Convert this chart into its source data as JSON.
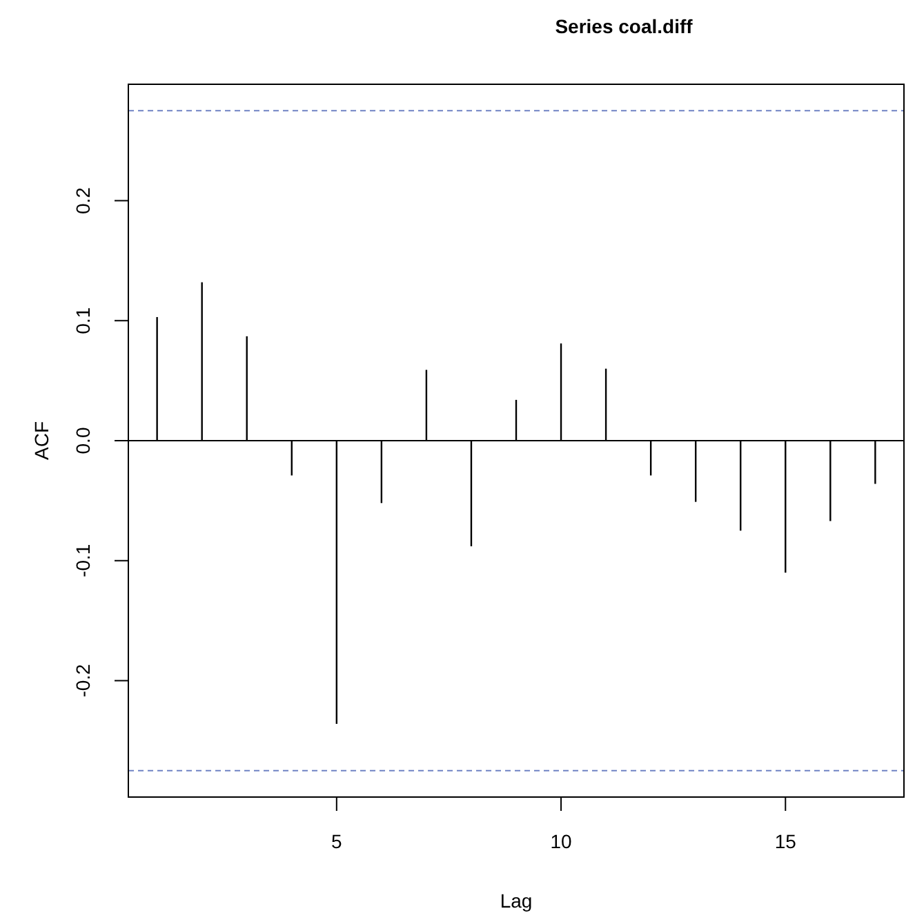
{
  "chart_data": {
    "type": "bar",
    "title": "Series coal.diff",
    "xlabel": "Lag",
    "ylabel": "ACF",
    "x": [
      1,
      2,
      3,
      4,
      5,
      6,
      7,
      8,
      9,
      10,
      11,
      12,
      13,
      14,
      15,
      16,
      17
    ],
    "values": [
      0.103,
      0.132,
      0.087,
      -0.029,
      -0.236,
      -0.052,
      0.059,
      -0.088,
      0.034,
      0.081,
      0.06,
      -0.029,
      -0.051,
      -0.075,
      -0.11,
      -0.067,
      -0.036
    ],
    "color": "#000000",
    "xlim": [
      0.36,
      17.64
    ],
    "xticks": [
      5,
      10,
      15
    ],
    "ylim": [
      -0.297,
      0.297
    ],
    "yticks": [
      {
        "value": -0.2,
        "label": "-0.2"
      },
      {
        "value": -0.1,
        "label": "-0.1"
      },
      {
        "value": 0,
        "label": "0.0"
      },
      {
        "value": 0.1,
        "label": "0.1"
      },
      {
        "value": 0.2,
        "label": "0.2"
      }
    ],
    "ref_lines": [
      {
        "axis": "y",
        "value": 0,
        "color": "#000000",
        "line_style": "solid"
      },
      {
        "axis": "y",
        "value": 0.275,
        "color": "#6f82c4",
        "line_style": "dashed"
      },
      {
        "axis": "y",
        "value": -0.275,
        "color": "#6f82c4",
        "line_style": "dashed"
      }
    ]
  }
}
